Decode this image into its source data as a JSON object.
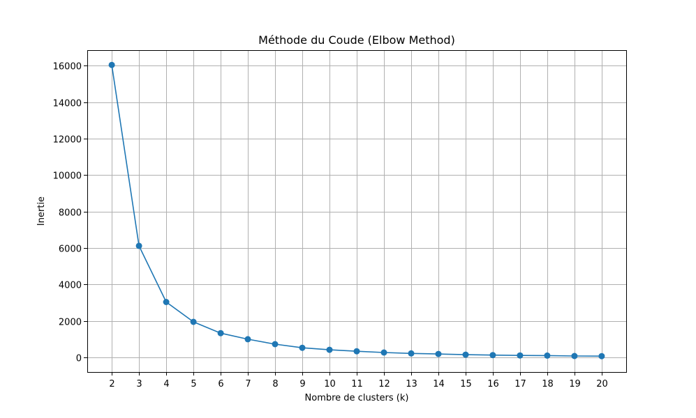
{
  "chart_data": {
    "type": "line",
    "title": "Méthode du Coude (Elbow Method)",
    "xlabel": "Nombre de clusters (k)",
    "ylabel": "Inertie",
    "x": [
      2,
      3,
      4,
      5,
      6,
      7,
      8,
      9,
      10,
      11,
      12,
      13,
      14,
      15,
      16,
      17,
      18,
      19,
      20
    ],
    "series": [
      {
        "values": [
          16040,
          6120,
          3040,
          1950,
          1330,
          1000,
          730,
          530,
          420,
          340,
          270,
          220,
          190,
          150,
          130,
          110,
          100,
          80,
          70
        ],
        "color": "#1f77b4",
        "marker": "circle"
      }
    ],
    "xlim": [
      1.1,
      20.9
    ],
    "ylim": [
      -800,
      16850
    ],
    "xticks": [
      2,
      3,
      4,
      5,
      6,
      7,
      8,
      9,
      10,
      11,
      12,
      13,
      14,
      15,
      16,
      17,
      18,
      19,
      20
    ],
    "yticks": [
      0,
      2000,
      4000,
      6000,
      8000,
      10000,
      12000,
      14000,
      16000
    ],
    "grid": true,
    "legend": false
  }
}
